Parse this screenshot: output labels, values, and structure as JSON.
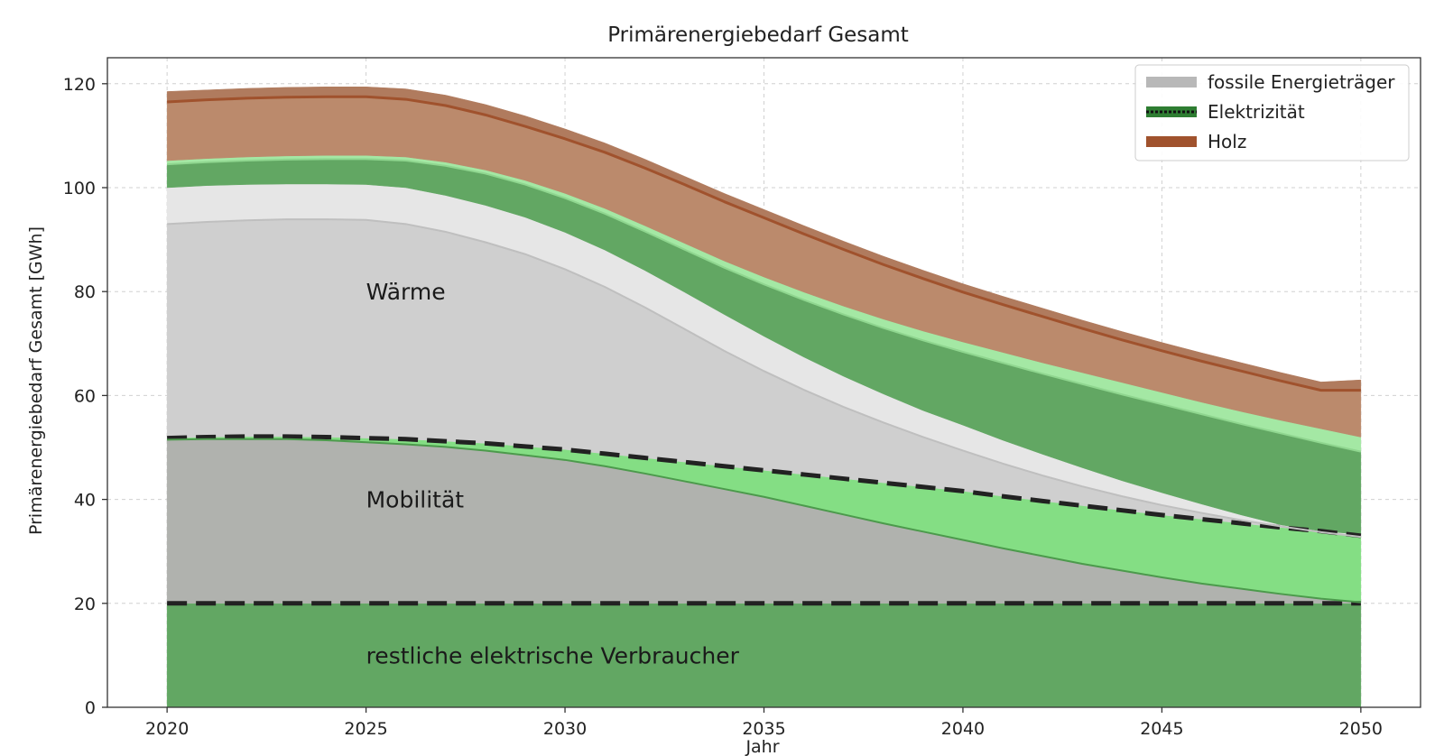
{
  "chart_data": {
    "type": "area",
    "title": "Primärenergiebedarf Gesamt",
    "xlabel": "Jahr",
    "ylabel": "Primärenergiebedarf Gesamt [GWh]",
    "xlim": [
      2018.5,
      2051.5
    ],
    "ylim": [
      0,
      125
    ],
    "xticks": [
      2020,
      2025,
      2030,
      2035,
      2040,
      2045,
      2050
    ],
    "yticks": [
      0,
      20,
      40,
      60,
      80,
      100,
      120
    ],
    "grid": true,
    "legend_position": "top-right",
    "x": [
      2020,
      2021,
      2022,
      2023,
      2024,
      2025,
      2026,
      2027,
      2028,
      2029,
      2030,
      2031,
      2032,
      2033,
      2034,
      2035,
      2036,
      2037,
      2038,
      2039,
      2040,
      2041,
      2042,
      2043,
      2044,
      2045,
      2046,
      2047,
      2048,
      2049,
      2050
    ],
    "legend": [
      {
        "label": "fossile Energieträger",
        "color": "#b8b8b8"
      },
      {
        "label": "Elektrizität",
        "color": "#2e7d32"
      },
      {
        "label": "Holz",
        "color": "#a0522d"
      }
    ],
    "boundaries": [
      {
        "name": "el_rest_top",
        "values": [
          20,
          20,
          20,
          20,
          20,
          20,
          20,
          20,
          20,
          20,
          20,
          20,
          20,
          20,
          20,
          20,
          20,
          20,
          20,
          20,
          20,
          20,
          20,
          20,
          20,
          20,
          20,
          20,
          20,
          20,
          20
        ]
      },
      {
        "name": "mob_fossil_top",
        "values": [
          51.5,
          51.6,
          51.6,
          51.6,
          51.4,
          51.0,
          50.6,
          50.1,
          49.4,
          48.5,
          47.6,
          46.4,
          45.0,
          43.5,
          42.0,
          40.5,
          38.8,
          37.1,
          35.4,
          33.8,
          32.2,
          30.6,
          29.1,
          27.6,
          26.3,
          25.0,
          23.8,
          22.8,
          21.8,
          20.9,
          20.2
        ]
      },
      {
        "name": "mob_top",
        "values": [
          51.8,
          52.0,
          52.1,
          52.1,
          52.0,
          51.8,
          51.6,
          51.2,
          50.8,
          50.2,
          49.6,
          48.8,
          48.0,
          47.2,
          46.4,
          45.6,
          44.8,
          44.0,
          43.2,
          42.4,
          41.6,
          40.6,
          39.7,
          38.8,
          37.9,
          37.0,
          36.2,
          35.4,
          34.6,
          33.9,
          33.0
        ]
      },
      {
        "name": "waerme_fossil_top",
        "values": [
          93.0,
          93.4,
          93.7,
          93.9,
          93.9,
          93.8,
          93.0,
          91.5,
          89.5,
          87.2,
          84.3,
          80.9,
          77.0,
          72.8,
          68.6,
          64.7,
          61.1,
          57.8,
          54.8,
          52.0,
          49.4,
          46.9,
          44.6,
          42.5,
          40.6,
          38.9,
          37.4,
          36.0,
          34.8,
          33.7,
          32.8
        ]
      },
      {
        "name": "waerme_light_top",
        "values": [
          100.0,
          100.4,
          100.6,
          100.7,
          100.7,
          100.6,
          100.0,
          98.5,
          96.6,
          94.3,
          91.4,
          88.0,
          84.1,
          79.9,
          75.6,
          71.4,
          67.4,
          63.7,
          60.3,
          57.1,
          54.3,
          51.4,
          48.7,
          46.1,
          43.6,
          41.3,
          39.1,
          37.0,
          35.1,
          33.9,
          33.3
        ]
      },
      {
        "name": "waerme_el_top",
        "values": [
          104.5,
          104.9,
          105.2,
          105.4,
          105.5,
          105.5,
          105.2,
          104.2,
          102.7,
          100.6,
          98.0,
          95.0,
          91.6,
          88.1,
          84.6,
          81.4,
          78.4,
          75.6,
          73.0,
          70.6,
          68.4,
          66.3,
          64.2,
          62.2,
          60.2,
          58.3,
          56.4,
          54.5,
          52.7,
          50.9,
          49.2
        ]
      },
      {
        "name": "waerme_el_light_top",
        "values": [
          105.2,
          105.6,
          105.9,
          106.1,
          106.2,
          106.2,
          105.9,
          104.9,
          103.4,
          101.4,
          98.9,
          96.0,
          92.7,
          89.3,
          85.9,
          82.8,
          79.9,
          77.2,
          74.7,
          72.4,
          70.3,
          68.3,
          66.3,
          64.4,
          62.5,
          60.6,
          58.7,
          56.9,
          55.2,
          53.6,
          52.0
        ]
      },
      {
        "name": "holz_top",
        "values": [
          116.5,
          116.9,
          117.2,
          117.4,
          117.5,
          117.5,
          117.0,
          115.8,
          114.0,
          111.8,
          109.4,
          106.8,
          103.8,
          100.6,
          97.3,
          94.2,
          91.1,
          88.1,
          85.2,
          82.5,
          79.9,
          77.5,
          75.2,
          72.9,
          70.7,
          68.6,
          66.6,
          64.7,
          62.8,
          61.0,
          61.0
        ]
      },
      {
        "name": "total_top",
        "values": [
          118.5,
          118.8,
          119.1,
          119.3,
          119.4,
          119.4,
          119.0,
          117.8,
          116.0,
          113.8,
          111.3,
          108.6,
          105.5,
          102.2,
          98.9,
          95.8,
          92.7,
          89.7,
          86.8,
          84.1,
          81.5,
          79.1,
          76.8,
          74.5,
          72.3,
          70.2,
          68.2,
          66.3,
          64.4,
          62.6,
          63.0
        ]
      }
    ],
    "bands": [
      {
        "from": null,
        "to": "el_rest_top",
        "color": "#62a763"
      },
      {
        "from": "el_rest_top",
        "to": "mob_fossil_top",
        "color": "#b0b2ae"
      },
      {
        "from": "mob_fossil_top",
        "to": "mob_top",
        "color": "#84de84"
      },
      {
        "from": "mob_top",
        "to": "waerme_fossil_top",
        "color": "#cfcfcf"
      },
      {
        "from": "waerme_fossil_top",
        "to": "waerme_light_top",
        "color": "#e6e6e6"
      },
      {
        "from": "waerme_light_top",
        "to": "waerme_el_top",
        "color": "#62a763"
      },
      {
        "from": "waerme_el_top",
        "to": "waerme_el_light_top",
        "color": "#a4e8a4"
      },
      {
        "from": "waerme_el_light_top",
        "to": "holz_top",
        "color": "#bb8a6c"
      },
      {
        "from": "holz_top",
        "to": "total_top",
        "color": "#b07b5e"
      }
    ],
    "lines": [
      {
        "on": "el_rest_top",
        "color": "#222222",
        "dashed": true,
        "width": 5
      },
      {
        "on": "mob_top",
        "color": "#222222",
        "dashed": true,
        "width": 5
      },
      {
        "on": "mob_fossil_top",
        "color": "#4c9a4c",
        "dashed": false,
        "width": 2
      },
      {
        "on": "waerme_fossil_top",
        "color": "#bfbfbf",
        "dashed": false,
        "width": 2
      },
      {
        "on": "waerme_el_top",
        "color": "#8fd68f",
        "dashed": false,
        "width": 2
      },
      {
        "on": "holz_top",
        "color": "#a0522d",
        "dashed": false,
        "width": 3
      }
    ],
    "region_labels": [
      {
        "text": "Wärme",
        "x": 2025,
        "y": 80
      },
      {
        "text": "Mobilität",
        "x": 2025,
        "y": 40
      },
      {
        "text": "restliche elektrische Verbraucher",
        "x": 2025,
        "y": 10
      }
    ]
  }
}
